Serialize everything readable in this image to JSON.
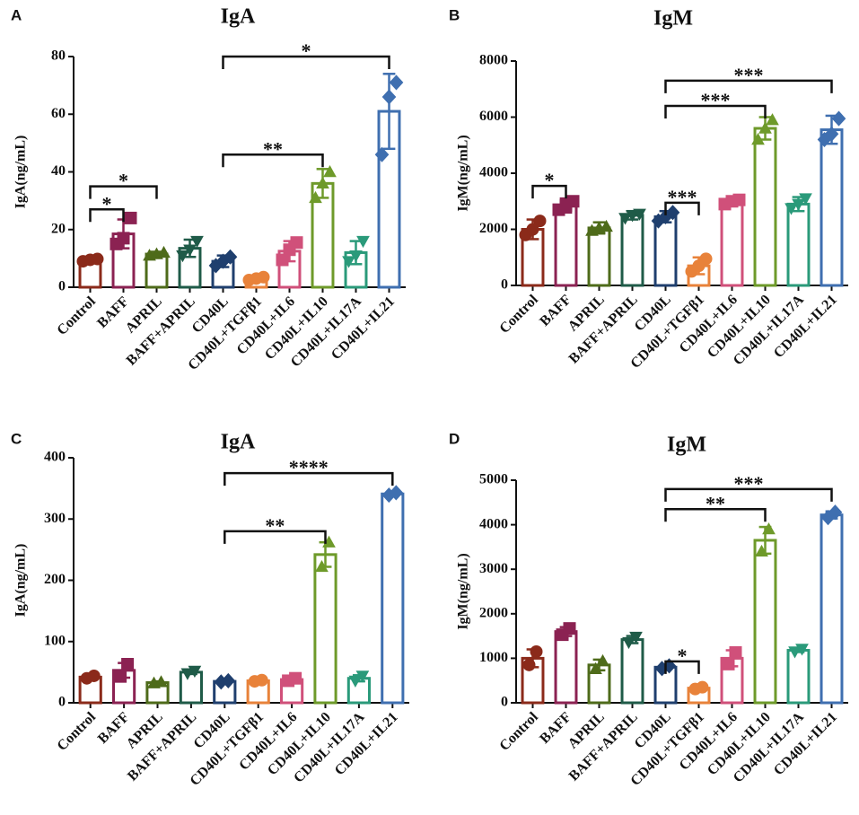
{
  "chart_data": [
    {
      "type": "bar",
      "panel": "A",
      "title": "IgA",
      "ylabel": "IgA(ng/mL)",
      "categories": [
        "Control",
        "BAFF",
        "APRIL",
        "BAFF+APRIL",
        "CD40L",
        "CD40L+TGFβ1",
        "CD40L+IL6",
        "CD40L+IL10",
        "CD40L+IL17A",
        "CD40L+IL21"
      ],
      "values": [
        9.5,
        18.5,
        11.5,
        13.5,
        9,
        3,
        12.5,
        36,
        12,
        61
      ],
      "errors": [
        0.5,
        5,
        0.8,
        3,
        2,
        1,
        3.5,
        5,
        4,
        13
      ],
      "points": [
        [
          9,
          9.5,
          9.8
        ],
        [
          15,
          17,
          24
        ],
        [
          11,
          11.5,
          12
        ],
        [
          11,
          13,
          16
        ],
        [
          7.5,
          9,
          10.5
        ],
        [
          2.5,
          3,
          3.5
        ],
        [
          9.5,
          13,
          15.5
        ],
        [
          31,
          36,
          40
        ],
        [
          9,
          11,
          16
        ],
        [
          46,
          66,
          71
        ]
      ],
      "colors": [
        "#8b2a1a",
        "#8b2252",
        "#4e6b1a",
        "#1f5b48",
        "#1f3f6e",
        "#e8823a",
        "#d0507a",
        "#6e9a2a",
        "#2a9a7a",
        "#3f6fb0"
      ],
      "markers": [
        "circle",
        "square",
        "triangle",
        "triangle-down",
        "diamond",
        "circle",
        "square",
        "triangle",
        "triangle-down",
        "diamond"
      ],
      "ylim": [
        0,
        80
      ],
      "yticks": [
        0,
        20,
        40,
        60,
        80
      ],
      "annotations": [
        {
          "from": "Control",
          "to": "BAFF",
          "y": 27,
          "label": "*"
        },
        {
          "from": "Control",
          "to": "APRIL",
          "y": 35,
          "label": "*"
        },
        {
          "from": "CD40L",
          "to": "CD40L+IL10",
          "y": 46,
          "label": "**"
        },
        {
          "from": "CD40L",
          "to": "CD40L+IL21",
          "y": 80,
          "label": "*"
        }
      ]
    },
    {
      "type": "bar",
      "panel": "B",
      "title": "IgM",
      "ylabel": "IgM(ng/mL)",
      "categories": [
        "Control",
        "BAFF",
        "APRIL",
        "BAFF+APRIL",
        "CD40L",
        "CD40L+TGFβ1",
        "CD40L+IL6",
        "CD40L+IL10",
        "CD40L+IL17A",
        "CD40L+IL21"
      ],
      "values": [
        2000,
        2850,
        2050,
        2500,
        2450,
        700,
        3000,
        5600,
        2900,
        5550
      ],
      "errors": [
        350,
        250,
        200,
        150,
        200,
        300,
        150,
        400,
        250,
        500
      ],
      "points": [
        [
          1800,
          2000,
          2300
        ],
        [
          2700,
          2850,
          3000
        ],
        [
          1950,
          2050,
          2100
        ],
        [
          2400,
          2500,
          2550
        ],
        [
          2300,
          2450,
          2600
        ],
        [
          500,
          700,
          950
        ],
        [
          2900,
          3000,
          3050
        ],
        [
          5200,
          5600,
          5900
        ],
        [
          2750,
          2900,
          3100
        ],
        [
          5200,
          5400,
          5950
        ]
      ],
      "colors": [
        "#8b2a1a",
        "#8b2252",
        "#4e6b1a",
        "#1f5b48",
        "#1f3f6e",
        "#e8823a",
        "#d0507a",
        "#6e9a2a",
        "#2a9a7a",
        "#3f6fb0"
      ],
      "markers": [
        "circle",
        "square",
        "triangle",
        "triangle-down",
        "diamond",
        "circle",
        "square",
        "triangle",
        "triangle-down",
        "diamond"
      ],
      "ylim": [
        0,
        8000
      ],
      "yticks": [
        0,
        2000,
        4000,
        6000,
        8000
      ],
      "annotations": [
        {
          "from": "Control",
          "to": "BAFF",
          "y": 3550,
          "label": "*"
        },
        {
          "from": "CD40L",
          "to": "CD40L+TGFβ1",
          "y": 2950,
          "label": "***"
        },
        {
          "from": "CD40L",
          "to": "CD40L+IL10",
          "y": 6400,
          "label": "***"
        },
        {
          "from": "CD40L",
          "to": "CD40L+IL21",
          "y": 7300,
          "label": "***"
        }
      ]
    },
    {
      "type": "bar",
      "panel": "C",
      "title": "IgA",
      "ylabel": "IgA(ng/mL)",
      "categories": [
        "Control",
        "BAFF",
        "APRIL",
        "BAFF+APRIL",
        "CD40L",
        "CD40L+TGFβ1",
        "CD40L+IL6",
        "CD40L+IL10",
        "CD40L+IL17A",
        "CD40L+IL21"
      ],
      "values": [
        42,
        53,
        33,
        50,
        35,
        36,
        38,
        242,
        40,
        341
      ],
      "errors": [
        3,
        12,
        2,
        3,
        2,
        2,
        3,
        20,
        5,
        3
      ],
      "points": [
        [
          40,
          44
        ],
        [
          43,
          63
        ],
        [
          32,
          34
        ],
        [
          48,
          52
        ],
        [
          34,
          36
        ],
        [
          35,
          37
        ],
        [
          36,
          40
        ],
        [
          222,
          262
        ],
        [
          36,
          44
        ],
        [
          339,
          343
        ]
      ],
      "colors": [
        "#8b2a1a",
        "#8b2252",
        "#4e6b1a",
        "#1f5b48",
        "#1f3f6e",
        "#e8823a",
        "#d0507a",
        "#6e9a2a",
        "#2a9a7a",
        "#3f6fb0"
      ],
      "markers": [
        "circle",
        "square",
        "triangle",
        "triangle-down",
        "diamond",
        "circle",
        "square",
        "triangle",
        "triangle-down",
        "diamond"
      ],
      "ylim": [
        0,
        400
      ],
      "yticks": [
        0,
        100,
        200,
        300,
        400
      ],
      "annotations": [
        {
          "from": "CD40L",
          "to": "CD40L+IL10",
          "y": 280,
          "label": "**"
        },
        {
          "from": "CD40L",
          "to": "CD40L+IL21",
          "y": 375,
          "label": "****"
        }
      ]
    },
    {
      "type": "bar",
      "panel": "D",
      "title": "IgM",
      "ylabel": "IgM(ng/mL)",
      "categories": [
        "Control",
        "BAFF",
        "APRIL",
        "BAFF+APRIL",
        "CD40L",
        "CD40L+TGFβ1",
        "CD40L+IL6",
        "CD40L+IL10",
        "CD40L+IL17A",
        "CD40L+IL21"
      ],
      "values": [
        1000,
        1600,
        850,
        1420,
        800,
        330,
        1000,
        3650,
        1180,
        4220
      ],
      "errors": [
        200,
        100,
        120,
        80,
        50,
        30,
        180,
        300,
        40,
        80
      ],
      "points": [
        [
          850,
          1150
        ],
        [
          1530,
          1670
        ],
        [
          760,
          940
        ],
        [
          1360,
          1480
        ],
        [
          770,
          830
        ],
        [
          310,
          350
        ],
        [
          870,
          1130
        ],
        [
          3400,
          3900
        ],
        [
          1150,
          1210
        ],
        [
          4160,
          4280
        ]
      ],
      "colors": [
        "#8b2a1a",
        "#8b2252",
        "#4e6b1a",
        "#1f5b48",
        "#1f3f6e",
        "#e8823a",
        "#d0507a",
        "#6e9a2a",
        "#2a9a7a",
        "#3f6fb0"
      ],
      "markers": [
        "circle",
        "square",
        "triangle",
        "triangle-down",
        "diamond",
        "circle",
        "square",
        "triangle",
        "triangle-down",
        "diamond"
      ],
      "ylim": [
        0,
        5000
      ],
      "yticks": [
        0,
        1000,
        2000,
        3000,
        4000,
        5000
      ],
      "annotations": [
        {
          "from": "CD40L",
          "to": "CD40L+TGFβ1",
          "y": 930,
          "label": "*"
        },
        {
          "from": "CD40L",
          "to": "CD40L+IL10",
          "y": 4350,
          "label": "**"
        },
        {
          "from": "CD40L",
          "to": "CD40L+IL21",
          "y": 4800,
          "label": "***"
        }
      ]
    }
  ]
}
